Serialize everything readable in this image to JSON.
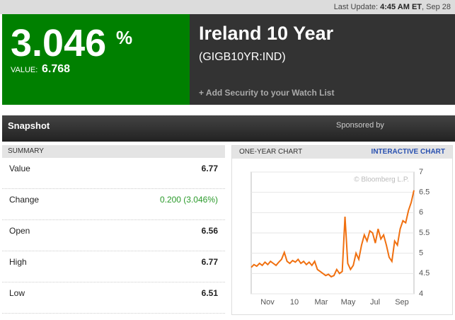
{
  "header": {
    "last_update_label": "Last Update:",
    "last_update_time": "4:45 AM ET",
    "last_update_date": ", Sep 28",
    "price": "3.046",
    "price_unit": "%",
    "value_label": "VALUE:",
    "value": "6.768",
    "name": "Ireland 10 Year",
    "ticker": "(GIGB10YR:IND)",
    "watchlist": "+ Add Security to your Watch List"
  },
  "snapshot": {
    "title": "Snapshot",
    "sponsored": "Sponsored by"
  },
  "summary": {
    "title": "SUMMARY",
    "rows": [
      [
        "Value",
        "6.77"
      ],
      [
        "Change",
        "0.200 (3.046%)"
      ],
      [
        "Open",
        "6.56"
      ],
      [
        "High",
        "6.77"
      ],
      [
        "Low",
        "6.51"
      ]
    ]
  },
  "chart_panel": {
    "title": "ONE-YEAR CHART",
    "link": "INTERACTIVE CHART",
    "watermark": "© Bloomberg L.P."
  },
  "chart_data": {
    "type": "line",
    "xticks": [
      "Nov",
      "10",
      "Mar",
      "May",
      "Jul",
      "Sep"
    ],
    "color": "#f07010",
    "grid": true,
    "ylim": [
      4,
      7
    ],
    "yticks": [
      4,
      4.5,
      5,
      5.5,
      6,
      6.5,
      7
    ],
    "values": [
      4.65,
      4.72,
      4.68,
      4.75,
      4.7,
      4.78,
      4.72,
      4.8,
      4.75,
      4.7,
      4.78,
      4.85,
      5.02,
      4.8,
      4.75,
      4.82,
      4.78,
      4.85,
      4.75,
      4.8,
      4.72,
      4.78,
      4.7,
      4.8,
      4.6,
      4.55,
      4.5,
      4.45,
      4.48,
      4.42,
      4.45,
      4.6,
      4.5,
      4.55,
      5.9,
      4.75,
      4.6,
      4.7,
      5,
      4.85,
      5.2,
      5.45,
      5.3,
      5.55,
      5.5,
      5.25,
      5.6,
      5.35,
      5.45,
      5.2,
      4.9,
      4.8,
      5.3,
      5.2,
      5.6,
      5.8,
      5.75,
      6.05,
      6.25,
      6.55
    ]
  }
}
